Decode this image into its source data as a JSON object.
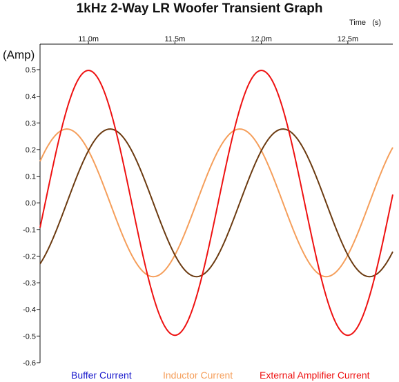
{
  "chart_data": {
    "type": "line",
    "title": "1kHz 2-Way LR Woofer Transient Graph",
    "xlabel": "Time",
    "xunit": "(s)",
    "ylabel": "(Amp)",
    "xlim": [
      0.01072,
      0.01276
    ],
    "ylim": [
      -0.6,
      0.55
    ],
    "x_ticks": [
      0.011,
      0.0115,
      0.012,
      0.0125
    ],
    "x_tick_labels": [
      "11.0m",
      "11.5m",
      "12.0m",
      "12.5m"
    ],
    "y_ticks": [
      -0.6,
      -0.5,
      -0.4,
      -0.3,
      -0.2,
      -0.1,
      0.0,
      0.1,
      0.2,
      0.3,
      0.4,
      0.5
    ],
    "y_tick_labels": [
      "-0.6",
      "-0.5",
      "-0.4",
      "-0.3",
      "-0.2",
      "-0.1",
      "0.0",
      "0.1",
      "0.2",
      "0.3",
      "0.4",
      "0.5"
    ],
    "grid": false,
    "legend_position": "bottom",
    "series": [
      {
        "name": "Buffer Current",
        "color": "#1a1acc",
        "frequency_hz": 1000,
        "amplitude": 0.0,
        "peak_time_s": 0.011,
        "show_line": false
      },
      {
        "name": "Inductor Current",
        "color": "#f59e5a",
        "frequency_hz": 1000,
        "amplitude": 0.277,
        "peak_time_s": 0.010875,
        "show_line": true
      },
      {
        "name": "External Amplifier Current",
        "color": "#ee1111",
        "frequency_hz": 1000,
        "amplitude": 0.497,
        "peak_time_s": 0.011,
        "show_line": true
      },
      {
        "name": "",
        "color": "#6b3a10",
        "frequency_hz": 1000,
        "amplitude": 0.277,
        "peak_time_s": 0.011125,
        "show_line": true
      }
    ]
  }
}
